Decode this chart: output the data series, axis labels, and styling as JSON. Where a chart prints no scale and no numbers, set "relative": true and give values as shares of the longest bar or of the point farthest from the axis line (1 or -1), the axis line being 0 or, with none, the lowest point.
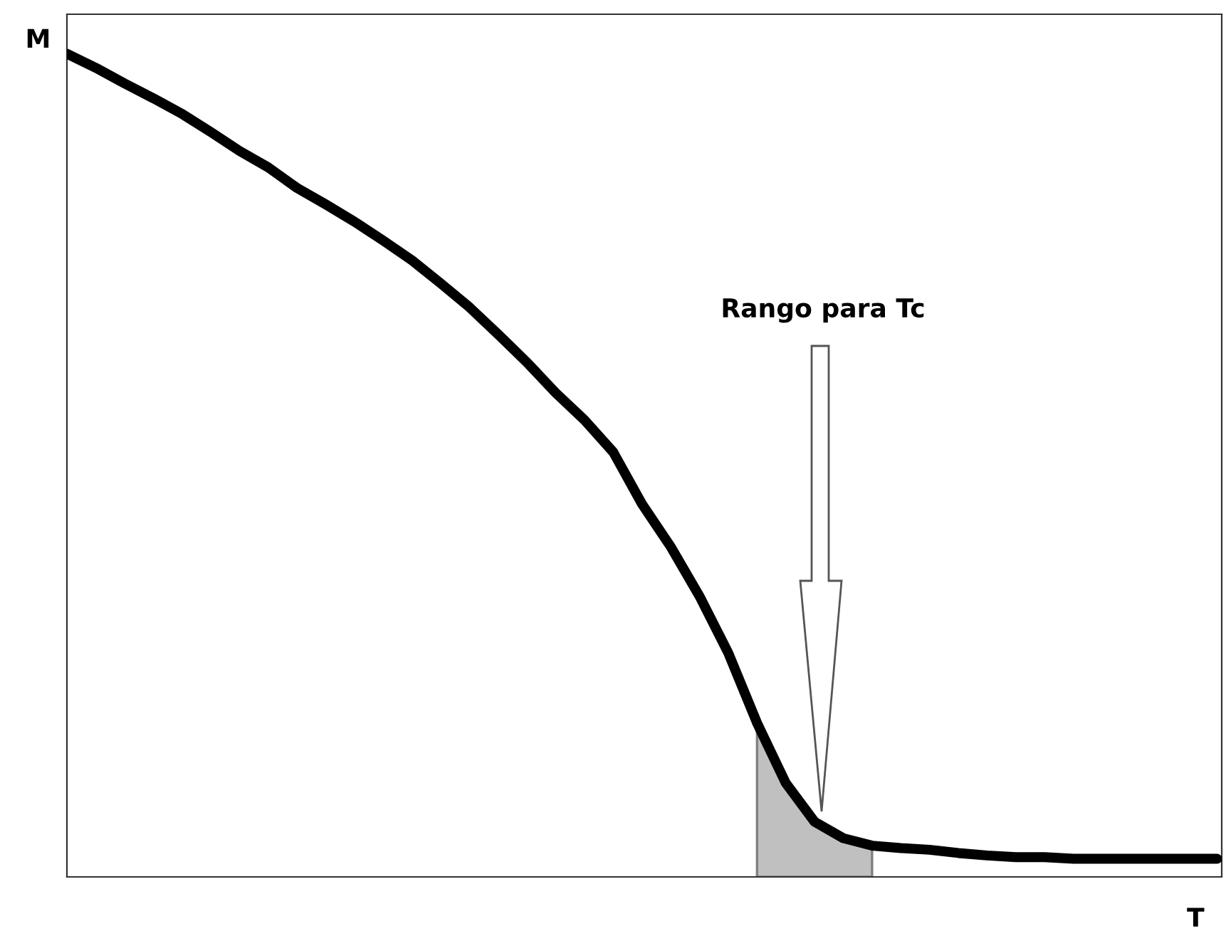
{
  "chart_data": {
    "type": "line",
    "relative": true,
    "xlabel": "T",
    "ylabel": "M",
    "annotations": [
      "Rango para Tc"
    ],
    "categories": [
      null,
      null,
      null,
      null,
      null,
      null,
      null,
      null,
      null,
      null,
      null,
      null,
      null,
      null,
      null,
      null,
      null,
      null,
      null,
      null,
      null,
      null,
      null,
      null,
      null,
      null,
      null,
      null,
      null,
      null,
      null,
      null,
      null,
      null,
      null,
      null,
      null,
      null,
      null,
      null,
      null
    ],
    "series": [
      {
        "color": "#000000",
        "values": [
          1.0,
          0.983,
          0.964,
          0.946,
          0.927,
          0.905,
          0.882,
          0.862,
          0.837,
          0.817,
          0.796,
          0.773,
          0.749,
          0.721,
          0.692,
          0.659,
          0.625,
          0.588,
          0.555,
          0.516,
          0.453,
          0.401,
          0.341,
          0.272,
          0.187,
          0.114,
          0.067,
          0.047,
          0.038,
          0.035,
          0.033,
          0.029,
          0.026,
          0.024,
          0.024,
          0.022,
          0.022,
          0.022,
          0.022,
          0.022,
          0.022
        ]
      },
      {
        "type": "area",
        "color": "#c0c0c0",
        "values": [
          null,
          null,
          null,
          null,
          null,
          null,
          null,
          null,
          null,
          null,
          null,
          null,
          null,
          null,
          null,
          null,
          null,
          null,
          null,
          null,
          null,
          null,
          null,
          null,
          0.187,
          0.114,
          0.067,
          0.047,
          0.038,
          null,
          null,
          null,
          null,
          null,
          null,
          null,
          null,
          null,
          null,
          null,
          null
        ]
      }
    ]
  }
}
